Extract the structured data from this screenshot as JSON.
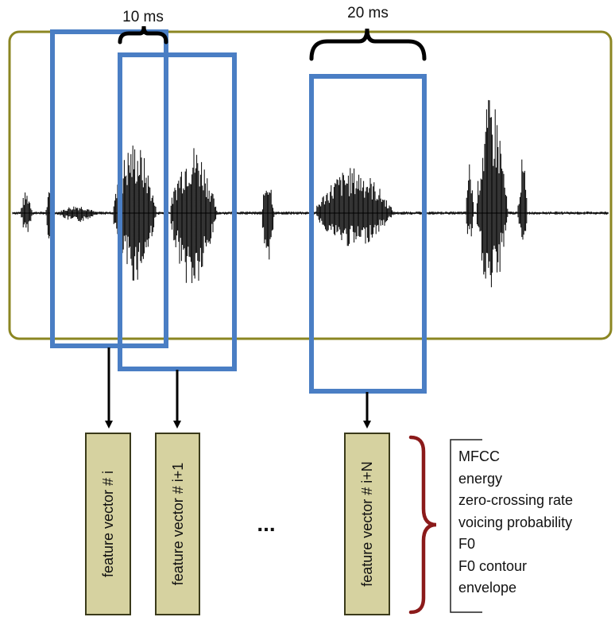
{
  "labels": {
    "hop": "10 ms",
    "window": "20 ms",
    "ellipsis": "..."
  },
  "feature_vectors": [
    "feature vector # i",
    "feature vector # i+1",
    "feature vector # i+N"
  ],
  "features": [
    "MFCC",
    "energy",
    "zero-crossing rate",
    "voicing probability",
    "F0",
    "F0 contour",
    "envelope"
  ],
  "colors": {
    "frame_border": "#8b8622",
    "window": "#4a7ec4",
    "waveform": "#000000",
    "vector_fill": "#d6d2a0",
    "vector_border": "#3a3a1a",
    "brace_features": "#8b1a1a"
  }
}
